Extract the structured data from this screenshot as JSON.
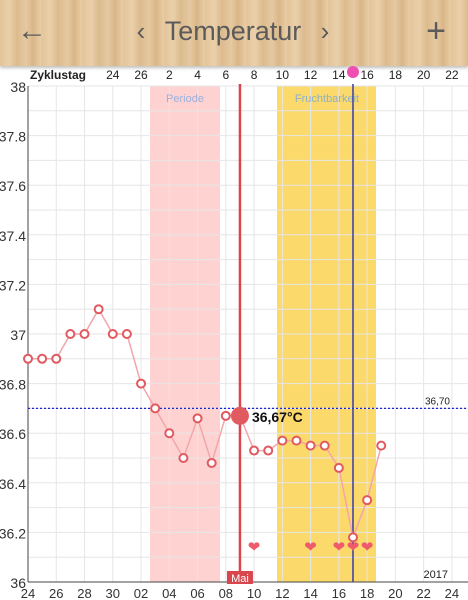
{
  "header": {
    "back_icon": "arrow-left-icon",
    "prev_icon": "chevron-left-icon",
    "title": "Temperatur",
    "next_icon": "chevron-right-icon",
    "add_icon": "plus-icon"
  },
  "chart_data": {
    "type": "line",
    "top_axis_label": "Zyklustag",
    "cycle_day_ticks": [
      "24",
      "26",
      "2",
      "4",
      "6",
      "8",
      "10",
      "12",
      "14",
      "16",
      "18",
      "20",
      "22"
    ],
    "date_ticks": [
      "24",
      "26",
      "28",
      "30",
      "02",
      "04",
      "06",
      "08",
      "10",
      "12",
      "14",
      "16",
      "18",
      "20",
      "22",
      "24"
    ],
    "month_label": "Mai",
    "year_label": "2017",
    "y_ticks": [
      "38",
      "37.8",
      "37.6",
      "37.4",
      "37.2",
      "37",
      "36.8",
      "36.6",
      "36.4",
      "36.2",
      "36"
    ],
    "ylim": [
      36,
      38
    ],
    "cover_line": {
      "value": 36.7,
      "label": "36,70",
      "color": "#1a22d8"
    },
    "period_band": {
      "label": "Periode",
      "color": "#ffd2d2"
    },
    "fertile_band": {
      "label": "Fruchtbarkeit",
      "color": "#fbd96a"
    },
    "selected": {
      "value": 36.67,
      "label": "36,67°C"
    },
    "series": [
      {
        "values": [
          36.9,
          36.9,
          36.9,
          37.0,
          37.0,
          37.1,
          37.0,
          37.0,
          36.8,
          36.7,
          36.6,
          36.5,
          36.66,
          36.48,
          36.67,
          36.67,
          36.53,
          36.53,
          36.57,
          36.57,
          36.55,
          36.55,
          36.46,
          36.18,
          36.33,
          36.55
        ]
      }
    ],
    "heart_count": 5,
    "colors": {
      "series": "#e05a60",
      "selected_line": "#d9464e",
      "ovulation_line": "#3a3aa8",
      "grid": "#e6e6e6"
    }
  }
}
